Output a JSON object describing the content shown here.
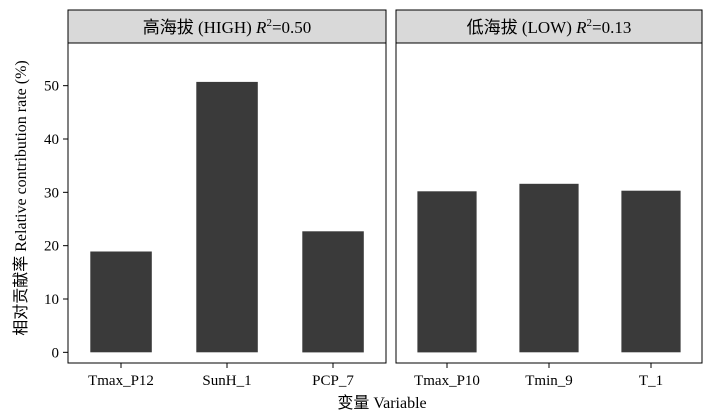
{
  "chart_data": {
    "type": "bar",
    "ylabel": "相对贡献率 Relative contribution rate (%)",
    "xlabel": "变量 Variable",
    "ylim": [
      -2,
      58
    ],
    "yticks": [
      0,
      10,
      20,
      30,
      40,
      50
    ],
    "bar_color": "#3a3a3a",
    "strip_color": "#d9d9d9",
    "grid": false,
    "panels": [
      {
        "title_main": "高海拔 (HIGH) ",
        "title_r": "R",
        "title_sup": "2",
        "title_value": "=0.50",
        "categories": [
          "Tmax_P12",
          "SunH_1",
          "PCP_7"
        ],
        "values": [
          18.9,
          50.7,
          22.7
        ]
      },
      {
        "title_main": "低海拔 (LOW) ",
        "title_r": "R",
        "title_sup": "2",
        "title_value": "=0.13",
        "categories": [
          "Tmax_P10",
          "Tmin_9",
          "T_1"
        ],
        "values": [
          30.2,
          31.6,
          30.3
        ]
      }
    ]
  }
}
